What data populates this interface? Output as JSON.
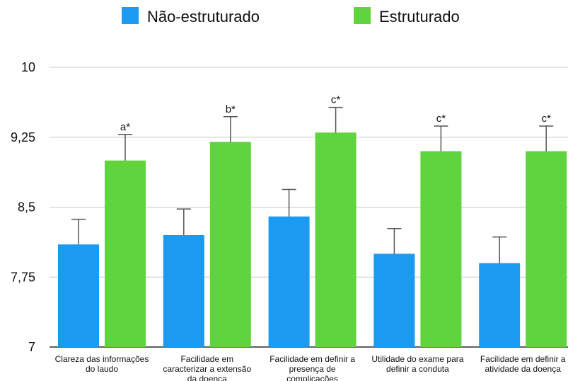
{
  "chart_data": {
    "type": "bar",
    "categories": [
      [
        "Clareza das informações",
        "do laudo"
      ],
      [
        "Facilidade em",
        "caracterizar a extensão",
        "da doença"
      ],
      [
        "Facilidade em definir a",
        "presença de",
        "complicações"
      ],
      [
        "Utilidade do exame para",
        "definir a conduta"
      ],
      [
        "Facilidade em definir a",
        "atividade da doença"
      ]
    ],
    "series": [
      {
        "name": "Não-estruturado",
        "color": "#1a9af0",
        "values": [
          8.1,
          8.2,
          8.4,
          8.0,
          7.9
        ],
        "error": [
          0.27,
          0.28,
          0.29,
          0.27,
          0.28
        ]
      },
      {
        "name": "Estruturado",
        "color": "#5fd43c",
        "values": [
          9.0,
          9.2,
          9.3,
          9.1,
          9.1
        ],
        "error": [
          0.28,
          0.27,
          0.27,
          0.27,
          0.27
        ]
      }
    ],
    "annotations": [
      "a*",
      "b*",
      "c*",
      "c*",
      "c*"
    ],
    "yticks": [
      7,
      7.75,
      8.5,
      9.25,
      10
    ],
    "ytick_labels": [
      "7",
      "7,75",
      "8,5",
      "9,25",
      "10"
    ],
    "ylim": [
      7,
      10
    ],
    "grid": true,
    "legend_position": "top"
  }
}
